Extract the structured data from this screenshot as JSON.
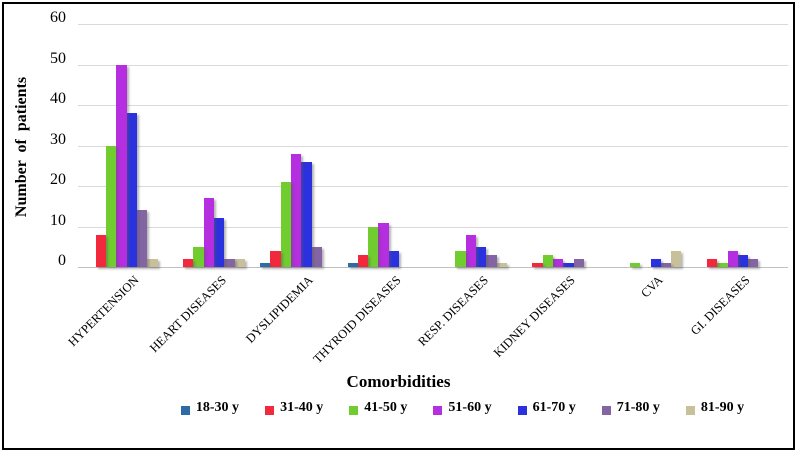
{
  "chart_data": {
    "type": "bar",
    "title": "",
    "xlabel": "Comorbidities",
    "ylabel": "Number of patients",
    "ylim": [
      0,
      60
    ],
    "yticks": [
      0,
      10,
      20,
      30,
      40,
      50,
      60
    ],
    "grid": "horizontal",
    "legend_position": "bottom",
    "categories": [
      "HYPERTENSION",
      "HEART DISEASES",
      "DYSLIPIDEMIA",
      "THYROID DISEASES",
      "RESP. DISEASES",
      "KIDNEY DISEASES",
      "CVA",
      "GI. DISEASES"
    ],
    "series": [
      {
        "name": "18-30 y",
        "color": "#2d6ba4",
        "values": [
          0,
          0,
          1,
          1,
          0,
          0,
          0,
          0
        ]
      },
      {
        "name": "31-40 y",
        "color": "#f2283d",
        "values": [
          8,
          2,
          4,
          3,
          0,
          1,
          0,
          2
        ]
      },
      {
        "name": "41-50 y",
        "color": "#70cc2f",
        "values": [
          30,
          5,
          21,
          10,
          4,
          3,
          1,
          1
        ]
      },
      {
        "name": "51-60 y",
        "color": "#b52edf",
        "values": [
          50,
          17,
          28,
          11,
          8,
          2,
          0,
          4
        ]
      },
      {
        "name": "61-70 y",
        "color": "#2a31de",
        "values": [
          38,
          12,
          26,
          4,
          5,
          1,
          2,
          3
        ]
      },
      {
        "name": "71-80 y",
        "color": "#8465a4",
        "values": [
          14,
          2,
          5,
          0,
          3,
          2,
          1,
          2
        ]
      },
      {
        "name": "81-90 y",
        "color": "#c8c09b",
        "values": [
          2,
          2,
          0,
          0,
          1,
          0,
          4,
          0
        ]
      }
    ],
    "colors": {
      "gridline": "#d9d9d9",
      "axis_line": "#c0c0c0",
      "background": "#ffffff",
      "border": "#000000"
    }
  }
}
